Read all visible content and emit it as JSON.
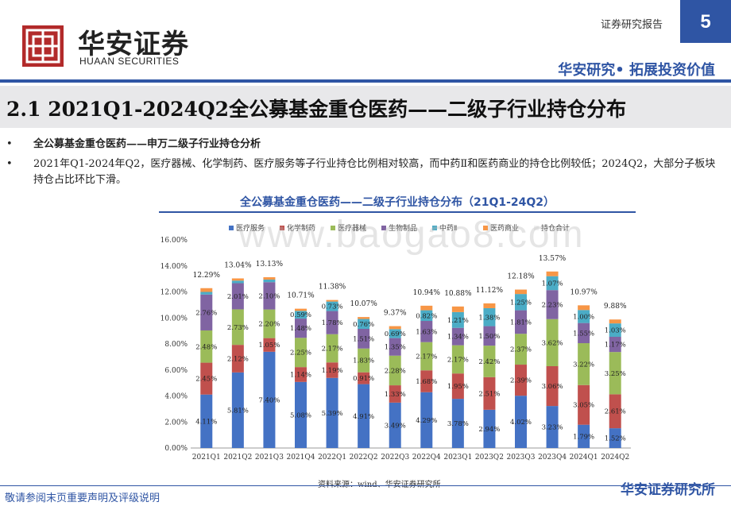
{
  "header": {
    "logo_cn": "华安证券",
    "logo_en": "HUAAN SECURITIES",
    "report_label": "证券研究报告",
    "page_number": "5",
    "slogan": "华安研究• 拓展投资价值"
  },
  "title": "2.1 2021Q1-2024Q2全公募基金重仓医药——二级子行业持仓分布",
  "bullets": [
    "全公募基金重仓医药——申万二级子行业持仓分析",
    "2021年Q1-2024年Q2，医疗器械、化学制药、医疗服务等子行业持仓比例相对较高，而中药Ⅱ和医药商业的持仓比例较低；2024Q2，大部分子板块持仓占比环比下滑。"
  ],
  "footer": {
    "source": "资料来源：wind、华安证券研究所",
    "disclaimer": "敬请参阅末页重要声明及评级说明",
    "brand": "华安证券研究所"
  },
  "watermark": "www.baogao8.com",
  "colors": {
    "accent": "#2f55a4",
    "医疗服务": "#4472c4",
    "化学制药": "#c0504d",
    "医疗器械": "#9bbb59",
    "生物制品": "#8064a2",
    "中药Ⅱ": "#4bacc6",
    "医药商业": "#f79646"
  },
  "chart_data": {
    "type": "bar",
    "stacked": true,
    "title": "全公募基金重仓医药——二级子行业持仓分布（21Q1-24Q2）",
    "categories": [
      "2021Q1",
      "2021Q2",
      "2021Q3",
      "2021Q4",
      "2022Q1",
      "2022Q2",
      "2022Q3",
      "2022Q4",
      "2023Q1",
      "2023Q2",
      "2023Q3",
      "2023Q4",
      "2024Q1",
      "2024Q2"
    ],
    "legend": [
      "医疗服务",
      "化学制药",
      "医疗器械",
      "生物制品",
      "中药Ⅱ",
      "医药商业",
      "持仓合计"
    ],
    "series": [
      {
        "name": "医疗服务",
        "color": "#4472c4",
        "values": [
          4.11,
          5.81,
          7.4,
          5.08,
          5.39,
          4.91,
          3.49,
          4.29,
          3.78,
          2.94,
          4.02,
          3.23,
          1.79,
          1.52
        ],
        "labels": [
          "4.11%",
          "5.81%",
          "7.40%",
          "5.08%",
          "5.39%",
          "4.91%",
          "3.49%",
          "4.29%",
          "3.78%",
          "2.94%",
          "4.02%",
          "3.23%",
          "1.79%",
          "1.52%"
        ]
      },
      {
        "name": "化学制药",
        "color": "#c0504d",
        "values": [
          2.45,
          2.12,
          1.05,
          1.14,
          1.19,
          0.91,
          1.33,
          1.68,
          1.95,
          2.51,
          2.39,
          3.06,
          3.05,
          2.61
        ],
        "labels": [
          "2.45%",
          "2.12%",
          "1.05%",
          "1.14%",
          "1.19%",
          "0.91%",
          "1.33%",
          "1.68%",
          "1.95%",
          "2.51%",
          "2.39%",
          "3.06%",
          "3.05%",
          "2.61%"
        ]
      },
      {
        "name": "医疗器械",
        "color": "#9bbb59",
        "values": [
          2.48,
          2.73,
          2.2,
          2.25,
          2.17,
          1.83,
          2.28,
          2.17,
          2.17,
          2.42,
          2.37,
          3.62,
          3.22,
          3.25
        ],
        "labels": [
          "2.48%",
          "2.73%",
          "2.20%",
          "2.25%",
          "2.17%",
          "1.83%",
          "2.28%",
          "2.17%",
          "2.17%",
          "2.42%",
          "2.37%",
          "3.62%",
          "3.22%",
          "3.25%"
        ]
      },
      {
        "name": "生物制品",
        "color": "#8064a2",
        "values": [
          2.76,
          2.01,
          2.1,
          1.48,
          1.78,
          1.51,
          1.35,
          1.63,
          1.34,
          1.5,
          1.81,
          2.23,
          1.55,
          1.17
        ],
        "labels": [
          "2.76%",
          "2.01%",
          "2.10%",
          "1.48%",
          "1.78%",
          "1.51%",
          "1.35%",
          "1.63%",
          "1.34%",
          "1.50%",
          "1.81%",
          "2.23%",
          "1.55%",
          "1.17%"
        ]
      },
      {
        "name": "中药Ⅱ",
        "color": "#4bacc6",
        "values": [
          0.2,
          0.2,
          0.2,
          0.59,
          0.73,
          0.76,
          0.69,
          0.82,
          1.21,
          1.38,
          1.25,
          1.07,
          1.0,
          1.03
        ],
        "labels": [
          "",
          "",
          "",
          "0.59%",
          "0.73%",
          "0.76%",
          "0.69%",
          "0.82%",
          "1.21%",
          "1.38%",
          "1.25%",
          "1.07%",
          "1.00%",
          "1.03%"
        ]
      },
      {
        "name": "医药商业",
        "color": "#f79646",
        "values": [
          0.29,
          0.17,
          0.18,
          0.17,
          0.12,
          0.15,
          0.23,
          0.35,
          0.43,
          0.37,
          0.34,
          0.36,
          0.36,
          0.3
        ],
        "labels": [
          "",
          "",
          "",
          "",
          "",
          "",
          "",
          "",
          "",
          "",
          "",
          "",
          "",
          ""
        ]
      }
    ],
    "totals": [
      "12.29%",
      "13.04%",
      "13.13%",
      "10.71%",
      "11.38%",
      "10.07%",
      "9.37%",
      "10.94%",
      "10.88%",
      "11.12%",
      "12.18%",
      "13.57%",
      "10.97%",
      "9.88%"
    ],
    "total_values": [
      12.29,
      13.04,
      13.13,
      10.71,
      11.38,
      10.07,
      9.37,
      10.94,
      10.88,
      11.12,
      12.18,
      13.57,
      10.97,
      9.88
    ],
    "ylim": [
      0,
      16
    ],
    "yticks": [
      "0.00%",
      "2.00%",
      "4.00%",
      "6.00%",
      "8.00%",
      "10.00%",
      "12.00%",
      "14.00%",
      "16.00%"
    ],
    "ytick_values": [
      0,
      2,
      4,
      6,
      8,
      10,
      12,
      14,
      16
    ]
  }
}
